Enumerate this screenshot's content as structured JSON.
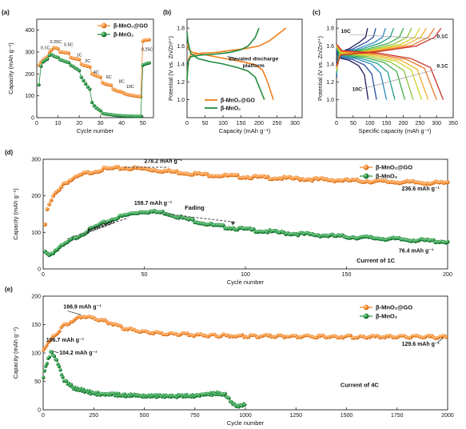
{
  "colors": {
    "go": "#f07f1e",
    "mno2": "#1e8a3c",
    "annotation": "#333333",
    "dashes": "#444444"
  },
  "chart_data": [
    {
      "panel_label": "(a)",
      "type": "scatter",
      "xlabel": "Cycle number",
      "ylabel": "Capacity (mAh g⁻¹)",
      "xlim": [
        0,
        55
      ],
      "ylim": [
        0,
        450
      ],
      "xticks": [
        "0",
        "10",
        "20",
        "30",
        "40",
        "50"
      ],
      "yticks": [
        "0",
        "100",
        "200",
        "300",
        "400"
      ],
      "legend": {
        "position": "top-right",
        "entries": [
          "β-MnO₂@GO",
          "β-MnO₂"
        ]
      },
      "rate_labels": [
        "0.1C",
        "0.25C",
        "0.5C",
        "1C",
        "2C",
        "4C",
        "6C",
        "8C",
        "10C",
        "0.25C"
      ],
      "series": [
        {
          "name": "β-MnO₂@GO",
          "x": [
            1,
            2,
            3,
            4,
            5,
            6,
            7,
            8,
            9,
            10,
            11,
            12,
            13,
            14,
            15,
            16,
            17,
            18,
            19,
            20,
            21,
            22,
            23,
            24,
            25,
            26,
            27,
            28,
            29,
            30,
            31,
            32,
            33,
            34,
            35,
            36,
            37,
            38,
            39,
            40,
            41,
            42,
            43,
            44,
            45,
            46,
            47,
            48,
            49,
            50,
            51,
            52,
            53
          ],
          "y": [
            240,
            255,
            265,
            272,
            280,
            300,
            310,
            320,
            318,
            315,
            300,
            300,
            298,
            297,
            295,
            275,
            272,
            270,
            268,
            266,
            245,
            240,
            238,
            235,
            232,
            200,
            196,
            192,
            188,
            185,
            160,
            155,
            152,
            150,
            148,
            130,
            126,
            122,
            120,
            118,
            112,
            108,
            105,
            103,
            102,
            100,
            98,
            97,
            96,
            350,
            355,
            355,
            356
          ]
        },
        {
          "name": "β-MnO₂",
          "x": [
            1,
            2,
            3,
            4,
            5,
            6,
            7,
            8,
            9,
            10,
            11,
            12,
            13,
            14,
            15,
            16,
            17,
            18,
            19,
            20,
            21,
            22,
            23,
            24,
            25,
            26,
            27,
            28,
            29,
            30,
            31,
            32,
            33,
            34,
            35,
            36,
            37,
            38,
            39,
            40,
            41,
            42,
            43,
            44,
            45,
            46,
            47,
            48,
            49,
            50,
            51,
            52,
            53
          ],
          "y": [
            150,
            235,
            255,
            262,
            268,
            285,
            288,
            282,
            278,
            275,
            265,
            262,
            258,
            255,
            252,
            240,
            235,
            228,
            222,
            215,
            185,
            170,
            155,
            140,
            130,
            70,
            55,
            45,
            38,
            32,
            20,
            18,
            16,
            15,
            14,
            12,
            11,
            10,
            10,
            9,
            8,
            8,
            7,
            7,
            7,
            6,
            6,
            6,
            6,
            240,
            245,
            248,
            250
          ]
        }
      ]
    },
    {
      "panel_label": "(b)",
      "type": "line",
      "xlabel": "Capacity (mAh g⁻¹)",
      "ylabel": "Potential (V vs. Zn/Zn²⁺)",
      "xlim": [
        0,
        320
      ],
      "ylim": [
        0.8,
        1.9
      ],
      "xticks": [
        "0",
        "50",
        "100",
        "150",
        "200",
        "250",
        "300"
      ],
      "yticks": [
        "1.0",
        "1.2",
        "1.4",
        "1.6",
        "1.8"
      ],
      "annotation": [
        "Elevated discharge",
        "platform"
      ],
      "legend": {
        "position": "bottom-right",
        "entries": [
          "β-MnO₂@GO",
          "β-MnO₂"
        ]
      },
      "series": [
        {
          "name": "β-MnO₂@GO",
          "discharge": [
            [
              0,
              1.62
            ],
            [
              5,
              1.56
            ],
            [
              15,
              1.53
            ],
            [
              40,
              1.51
            ],
            [
              80,
              1.48
            ],
            [
              120,
              1.45
            ],
            [
              160,
              1.42
            ],
            [
              190,
              1.39
            ],
            [
              210,
              1.33
            ],
            [
              222,
              1.22
            ],
            [
              232,
              1.1
            ],
            [
              240,
              1.0
            ]
          ],
          "charge": [
            [
              0,
              1.26
            ],
            [
              4,
              1.45
            ],
            [
              10,
              1.5
            ],
            [
              40,
              1.52
            ],
            [
              80,
              1.53
            ],
            [
              120,
              1.55
            ],
            [
              160,
              1.57
            ],
            [
              200,
              1.6
            ],
            [
              230,
              1.66
            ],
            [
              255,
              1.74
            ],
            [
              275,
              1.8
            ]
          ]
        },
        {
          "name": "β-MnO₂",
          "discharge": [
            [
              0,
              1.76
            ],
            [
              3,
              1.64
            ],
            [
              10,
              1.52
            ],
            [
              30,
              1.46
            ],
            [
              60,
              1.43
            ],
            [
              100,
              1.4
            ],
            [
              140,
              1.36
            ],
            [
              170,
              1.32
            ],
            [
              190,
              1.25
            ],
            [
              200,
              1.15
            ],
            [
              210,
              1.05
            ],
            [
              215,
              1.0
            ]
          ],
          "charge": [
            [
              0,
              1.22
            ],
            [
              3,
              1.42
            ],
            [
              10,
              1.48
            ],
            [
              40,
              1.5
            ],
            [
              80,
              1.51
            ],
            [
              120,
              1.53
            ],
            [
              150,
              1.56
            ],
            [
              170,
              1.6
            ],
            [
              190,
              1.7
            ],
            [
              200,
              1.8
            ]
          ]
        }
      ]
    },
    {
      "panel_label": "(c)",
      "type": "line",
      "xlabel": "Specific capacity (mAh g⁻¹)",
      "ylabel": "Potential (V vs. Zn/Zn²⁺)",
      "xlim": [
        0,
        350
      ],
      "ylim": [
        0.8,
        1.9
      ],
      "xticks": [
        "0",
        "50",
        "100",
        "150",
        "200",
        "250",
        "300",
        "350"
      ],
      "yticks": [
        "1.0",
        "1.2",
        "1.4",
        "1.6",
        "1.8"
      ],
      "rate_labels": [
        "10C",
        "0.1C",
        "0.1C",
        "10C"
      ],
      "curve_colors": [
        "#1b1b5e",
        "#2a4ea0",
        "#2a86c2",
        "#1f9e8a",
        "#3fae4a",
        "#8cc43c",
        "#d4d331",
        "#f3b12d",
        "#e8782a",
        "#c9352b"
      ],
      "capacities": [
        95,
        120,
        150,
        175,
        205,
        230,
        255,
        275,
        300,
        320
      ]
    },
    {
      "panel_label": "(d)",
      "type": "scatter",
      "xlabel": "Cycle number",
      "ylabel": "Capacity (mAh g⁻¹)",
      "xlim": [
        0,
        200
      ],
      "ylim": [
        0,
        300
      ],
      "xticks": [
        "0",
        "50",
        "100",
        "150",
        "200"
      ],
      "yticks": [
        "0",
        "100",
        "200",
        "300"
      ],
      "legend": {
        "position": "top-right",
        "entries": [
          "β-MnO₂@GO",
          "β-MnO₂"
        ]
      },
      "annotations": [
        "278.2 mAh g⁻¹",
        "236.6 mAh g⁻¹",
        "159.7 mAh g⁻¹",
        "76.4 mAh g⁻¹",
        "Activation",
        "Fading",
        "Current of 1C"
      ],
      "series": [
        {
          "name": "β-MnO₂@GO",
          "key_points": [
            [
              1,
              120
            ],
            [
              2,
              165
            ],
            [
              5,
              200
            ],
            [
              10,
              235
            ],
            [
              20,
              262
            ],
            [
              30,
              275
            ],
            [
              40,
              278.2
            ],
            [
              50,
              276
            ],
            [
              60,
              270
            ],
            [
              80,
              260
            ],
            [
              100,
              254
            ],
            [
              120,
              250
            ],
            [
              150,
              244
            ],
            [
              180,
              239
            ],
            [
              200,
              236.6
            ]
          ]
        },
        {
          "name": "β-MnO₂",
          "key_points": [
            [
              1,
              52
            ],
            [
              3,
              40
            ],
            [
              6,
              52
            ],
            [
              15,
              85
            ],
            [
              25,
              115
            ],
            [
              35,
              140
            ],
            [
              45,
              155
            ],
            [
              50,
              159.7
            ],
            [
              60,
              156
            ],
            [
              70,
              140
            ],
            [
              85,
              120
            ],
            [
              100,
              110
            ],
            [
              120,
              100
            ],
            [
              150,
              90
            ],
            [
              180,
              82
            ],
            [
              200,
              76.4
            ]
          ]
        }
      ]
    },
    {
      "panel_label": "(e)",
      "type": "scatter",
      "xlabel": "Cycle number",
      "ylabel": "Capacity (mAh g⁻¹)",
      "xlim": [
        0,
        2000
      ],
      "ylim": [
        0,
        200
      ],
      "xticks": [
        "0",
        "250",
        "500",
        "750",
        "1000",
        "1250",
        "1500",
        "1750",
        "2000"
      ],
      "yticks": [
        "0",
        "50",
        "100",
        "150",
        "200"
      ],
      "legend": {
        "position": "top-right",
        "entries": [
          "β-MnO₂@GO",
          "β-MnO₂"
        ]
      },
      "annotations": [
        "166.9 mAh g⁻¹",
        "106.7 mAh g⁻¹",
        "104.2 mAh g⁻¹",
        "129.6 mAh g⁻¹",
        "Current of 4C"
      ],
      "series": [
        {
          "name": "β-MnO₂@GO",
          "key_points": [
            [
              1,
              106.7
            ],
            [
              40,
              125
            ],
            [
              100,
              150
            ],
            [
              200,
              166.9
            ],
            [
              300,
              158
            ],
            [
              400,
              145
            ],
            [
              500,
              138
            ],
            [
              750,
              133
            ],
            [
              1000,
              131
            ],
            [
              1500,
              130
            ],
            [
              2000,
              129.6
            ]
          ]
        },
        {
          "name": "β-MnO₂",
          "key_points": [
            [
              1,
              60
            ],
            [
              15,
              80
            ],
            [
              40,
              104.2
            ],
            [
              70,
              85
            ],
            [
              100,
              55
            ],
            [
              150,
              40
            ],
            [
              250,
              30
            ],
            [
              500,
              25
            ],
            [
              750,
              26
            ],
            [
              850,
              30
            ],
            [
              900,
              28
            ],
            [
              930,
              15
            ],
            [
              960,
              8
            ],
            [
              1000,
              12
            ]
          ]
        }
      ]
    }
  ]
}
